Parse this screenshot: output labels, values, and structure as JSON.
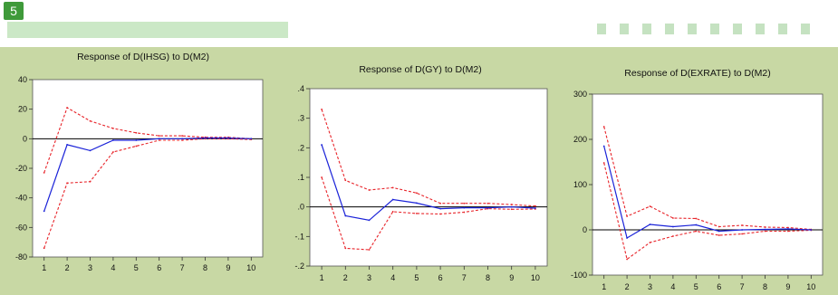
{
  "slide": {
    "number": "5"
  },
  "decor": {
    "dot_count": 10
  },
  "colors": {
    "panel": "#c8d8a4",
    "plot_bg": "#ffffff",
    "response": "#1a22d8",
    "band": "#e8242a",
    "zero_line": "#000000",
    "accent": "#3f9a3a"
  },
  "chart_data": [
    {
      "type": "line",
      "title": "Response of D(IHSG) to D(M2)",
      "x": [
        1,
        2,
        3,
        4,
        5,
        6,
        7,
        8,
        9,
        10
      ],
      "ylim": [
        -80,
        40
      ],
      "yticks": [
        -80,
        -60,
        -40,
        -20,
        0,
        20,
        40
      ],
      "ytick_labels": [
        "-80",
        "-60",
        "-40",
        "-20",
        "0",
        "20",
        "40"
      ],
      "series": [
        {
          "role": "response",
          "values": [
            -49,
            -4,
            -8,
            -1,
            -1,
            0,
            0,
            0.5,
            0.5,
            0
          ]
        },
        {
          "role": "upper",
          "values": [
            -23,
            21,
            12,
            7,
            4,
            2,
            2,
            1,
            1,
            0
          ]
        },
        {
          "role": "lower",
          "values": [
            -74,
            -30,
            -29,
            -9,
            -5,
            -1,
            -1,
            0,
            0,
            -0.5
          ]
        }
      ]
    },
    {
      "type": "line",
      "title": "Response of D(GY) to D(M2)",
      "x": [
        1,
        2,
        3,
        4,
        5,
        6,
        7,
        8,
        9,
        10
      ],
      "ylim": [
        -0.2,
        0.4
      ],
      "yticks": [
        -0.2,
        -0.1,
        0,
        0.1,
        0.2,
        0.3,
        0.4
      ],
      "ytick_labels": [
        "-.2",
        "-.1",
        ".0",
        ".1",
        ".2",
        ".3",
        ".4"
      ],
      "series": [
        {
          "role": "response",
          "values": [
            0.21,
            -0.03,
            -0.045,
            0.025,
            0.013,
            -0.006,
            -0.003,
            -0.003,
            0,
            -0.004
          ]
        },
        {
          "role": "upper",
          "values": [
            0.33,
            0.09,
            0.057,
            0.065,
            0.047,
            0.012,
            0.012,
            0.012,
            0.008,
            0.003
          ]
        },
        {
          "role": "lower",
          "values": [
            0.1,
            -0.14,
            -0.145,
            -0.016,
            -0.022,
            -0.024,
            -0.018,
            -0.006,
            -0.008,
            -0.007
          ]
        }
      ]
    },
    {
      "type": "line",
      "title": "Response of D(EXRATE) to D(M2)",
      "x": [
        1,
        2,
        3,
        4,
        5,
        6,
        7,
        8,
        9,
        10
      ],
      "ylim": [
        -100,
        300
      ],
      "yticks": [
        -100,
        0,
        100,
        200,
        300
      ],
      "ytick_labels": [
        "-100",
        "0",
        "100",
        "200",
        "300"
      ],
      "series": [
        {
          "role": "response",
          "values": [
            185,
            -18,
            12,
            7,
            11,
            -3,
            0,
            1,
            2,
            0
          ]
        },
        {
          "role": "upper",
          "values": [
            228,
            30,
            52,
            26,
            25,
            7,
            10,
            6,
            5,
            1
          ]
        },
        {
          "role": "lower",
          "values": [
            148,
            -65,
            -28,
            -14,
            -3,
            -12,
            -9,
            -3,
            -3,
            -1
          ]
        }
      ]
    }
  ]
}
